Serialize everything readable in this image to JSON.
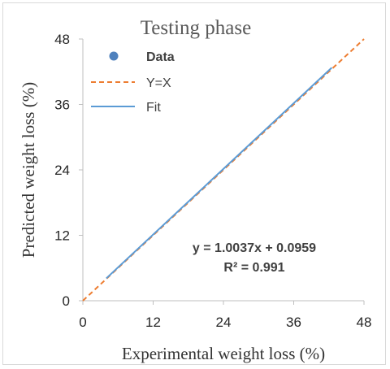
{
  "chart_data": {
    "type": "scatter",
    "title": "Testing phase",
    "xlabel": "Experimental weight loss (%)",
    "ylabel": "Predicted weight loss (%)",
    "xlim": [
      0,
      48
    ],
    "ylim": [
      0,
      48
    ],
    "xticks": [
      "0",
      "12",
      "24",
      "36",
      "48"
    ],
    "yticks": [
      "0",
      "12",
      "24",
      "36",
      "48"
    ],
    "grid": false,
    "legend_position": "top-left",
    "series": [
      {
        "name": "Data",
        "kind": "markers",
        "color": "#4f81bd",
        "points": []
      },
      {
        "name": "Y=X",
        "kind": "dashed-line",
        "color": "#ed7d31",
        "x": [
          0,
          48
        ],
        "y": [
          0,
          48
        ]
      },
      {
        "name": "Fit",
        "kind": "line",
        "color": "#5b9bd5",
        "x": [
          4,
          42.5
        ],
        "y": [
          4.11,
          42.75
        ]
      }
    ],
    "annotation": {
      "equation": "y = 1.0037x + 0.0959",
      "r2": "R² = 0.991"
    }
  }
}
